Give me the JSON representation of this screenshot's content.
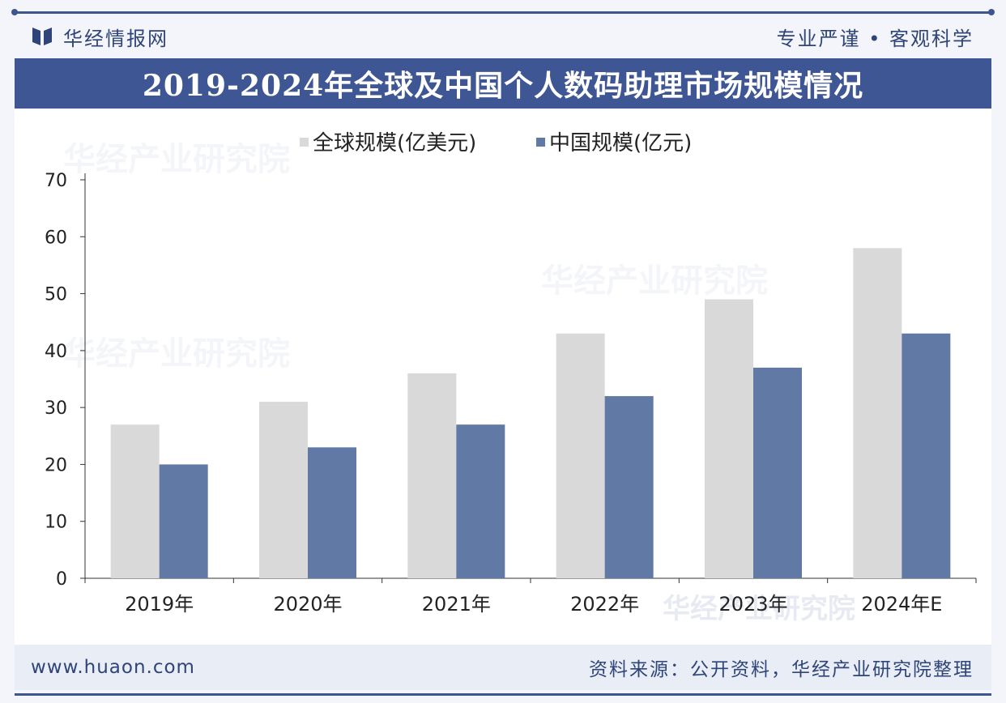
{
  "header": {
    "brand_name": "华经情报网",
    "slogan": "专业严谨 • 客观科学"
  },
  "title": "2019-2024年全球及中国个人数码助理市场规模情况",
  "footer": {
    "url": "www.huaon.com",
    "source": "资料来源：公开资料，华经产业研究院整理"
  },
  "watermark": {
    "text": "华经产业研究院",
    "url": "www.huaon.com"
  },
  "colors": {
    "accent": "#3e5694",
    "global_bar": "#d9d9d9",
    "china_bar": "#6179a5"
  },
  "chart_data": {
    "type": "bar",
    "categories": [
      "2019年",
      "2020年",
      "2021年",
      "2022年",
      "2023年",
      "2024年E"
    ],
    "series": [
      {
        "name": "全球规模(亿美元)",
        "values": [
          27,
          31,
          36,
          43,
          49,
          58
        ],
        "color": "#d9d9d9"
      },
      {
        "name": "中国规模(亿元)",
        "values": [
          20,
          23,
          27,
          32,
          37,
          43
        ],
        "color": "#6179a5"
      }
    ],
    "ylim": [
      0,
      70
    ],
    "yticks": [
      0,
      10,
      20,
      30,
      40,
      50,
      60,
      70
    ],
    "legend": "top-left",
    "grid": false
  }
}
